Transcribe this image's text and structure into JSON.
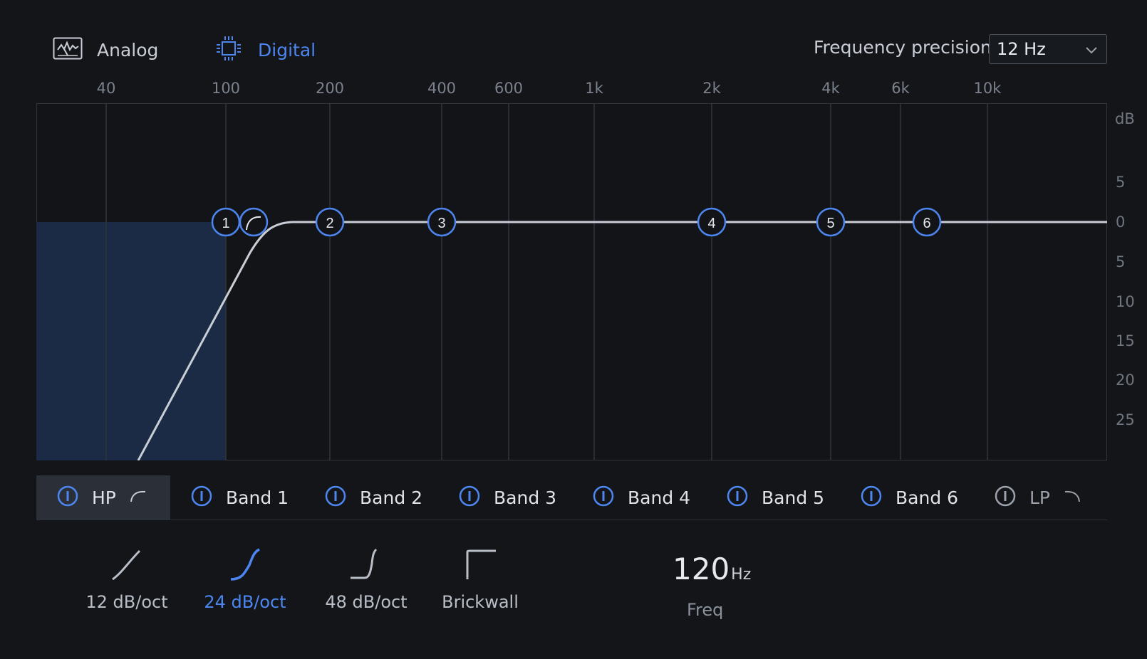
{
  "modes": {
    "analog": "Analog",
    "digital": "Digital",
    "selected": "Digital"
  },
  "precision": {
    "label": "Frequency precision",
    "value": "12 Hz"
  },
  "graph": {
    "freq_ticks": [
      "40",
      "100",
      "200",
      "400",
      "600",
      "1k",
      "2k",
      "4k",
      "6k",
      "10k"
    ],
    "db_unit": "dB",
    "db_ticks": [
      "5",
      "0",
      "5",
      "10",
      "15",
      "20",
      "25"
    ],
    "nodes": [
      "1",
      "2",
      "3",
      "4",
      "5",
      "6"
    ]
  },
  "tabs": [
    {
      "label": "HP",
      "active": true
    },
    {
      "label": "Band 1"
    },
    {
      "label": "Band 2"
    },
    {
      "label": "Band 3"
    },
    {
      "label": "Band 4"
    },
    {
      "label": "Band 5"
    },
    {
      "label": "Band 6"
    },
    {
      "label": "LP",
      "enabled": false
    }
  ],
  "slopes": [
    {
      "label": "12 dB/oct"
    },
    {
      "label": "24 dB/oct",
      "active": true
    },
    {
      "label": "48 dB/oct"
    },
    {
      "label": "Brickwall"
    }
  ],
  "frequency": {
    "value": "120",
    "unit": "Hz",
    "label": "Freq"
  },
  "colors": {
    "accent": "#4d86f0",
    "background": "#131519",
    "graph_fill": "#1b2a45"
  }
}
